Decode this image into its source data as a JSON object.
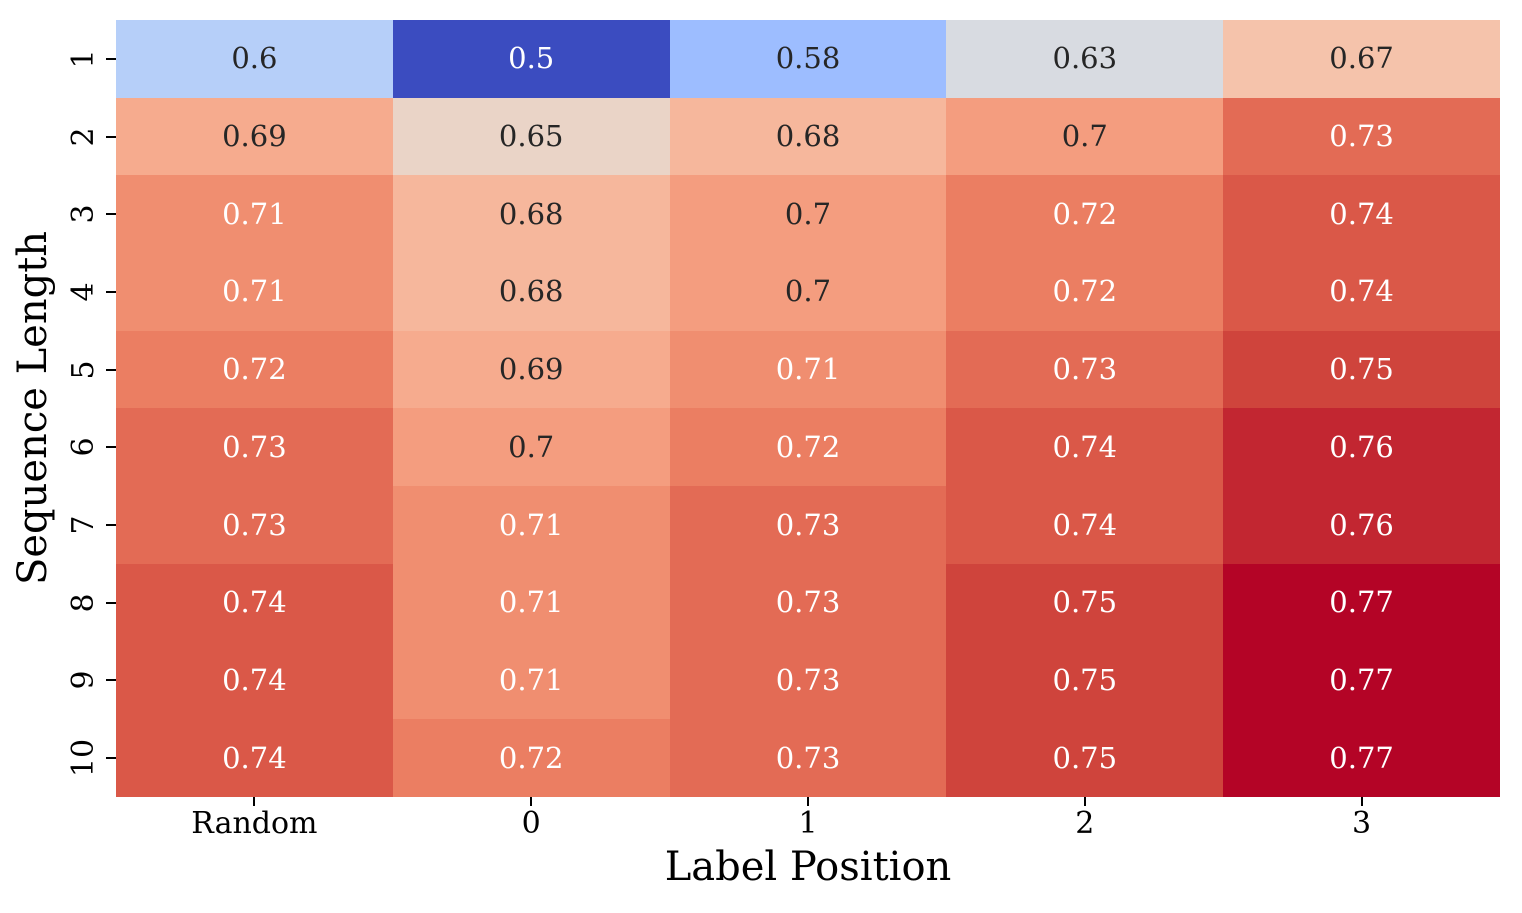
{
  "chart_data": {
    "type": "heatmap",
    "title": "",
    "xlabel": "Label Position",
    "ylabel": "Sequence Length",
    "x_categories": [
      "Random",
      "0",
      "1",
      "2",
      "3"
    ],
    "y_categories": [
      "1",
      "2",
      "3",
      "4",
      "5",
      "6",
      "7",
      "8",
      "9",
      "10"
    ],
    "values": [
      [
        0.6,
        0.5,
        0.58,
        0.63,
        0.67
      ],
      [
        0.69,
        0.65,
        0.68,
        0.7,
        0.73
      ],
      [
        0.71,
        0.68,
        0.7,
        0.72,
        0.74
      ],
      [
        0.71,
        0.68,
        0.7,
        0.72,
        0.74
      ],
      [
        0.72,
        0.69,
        0.71,
        0.73,
        0.75
      ],
      [
        0.73,
        0.7,
        0.72,
        0.74,
        0.76
      ],
      [
        0.73,
        0.71,
        0.73,
        0.74,
        0.76
      ],
      [
        0.74,
        0.71,
        0.73,
        0.75,
        0.77
      ],
      [
        0.74,
        0.71,
        0.73,
        0.75,
        0.77
      ],
      [
        0.74,
        0.72,
        0.73,
        0.75,
        0.77
      ]
    ],
    "vmin": 0.5,
    "vmax": 0.77,
    "colormap": "coolwarm",
    "color_min": "#3b4cc0",
    "color_mid": "#dddcdc",
    "color_max": "#b40426",
    "annotation_dark_text": "#262626",
    "annotation_light_text": "#ffffff",
    "grid": false,
    "legend_position": "none"
  }
}
